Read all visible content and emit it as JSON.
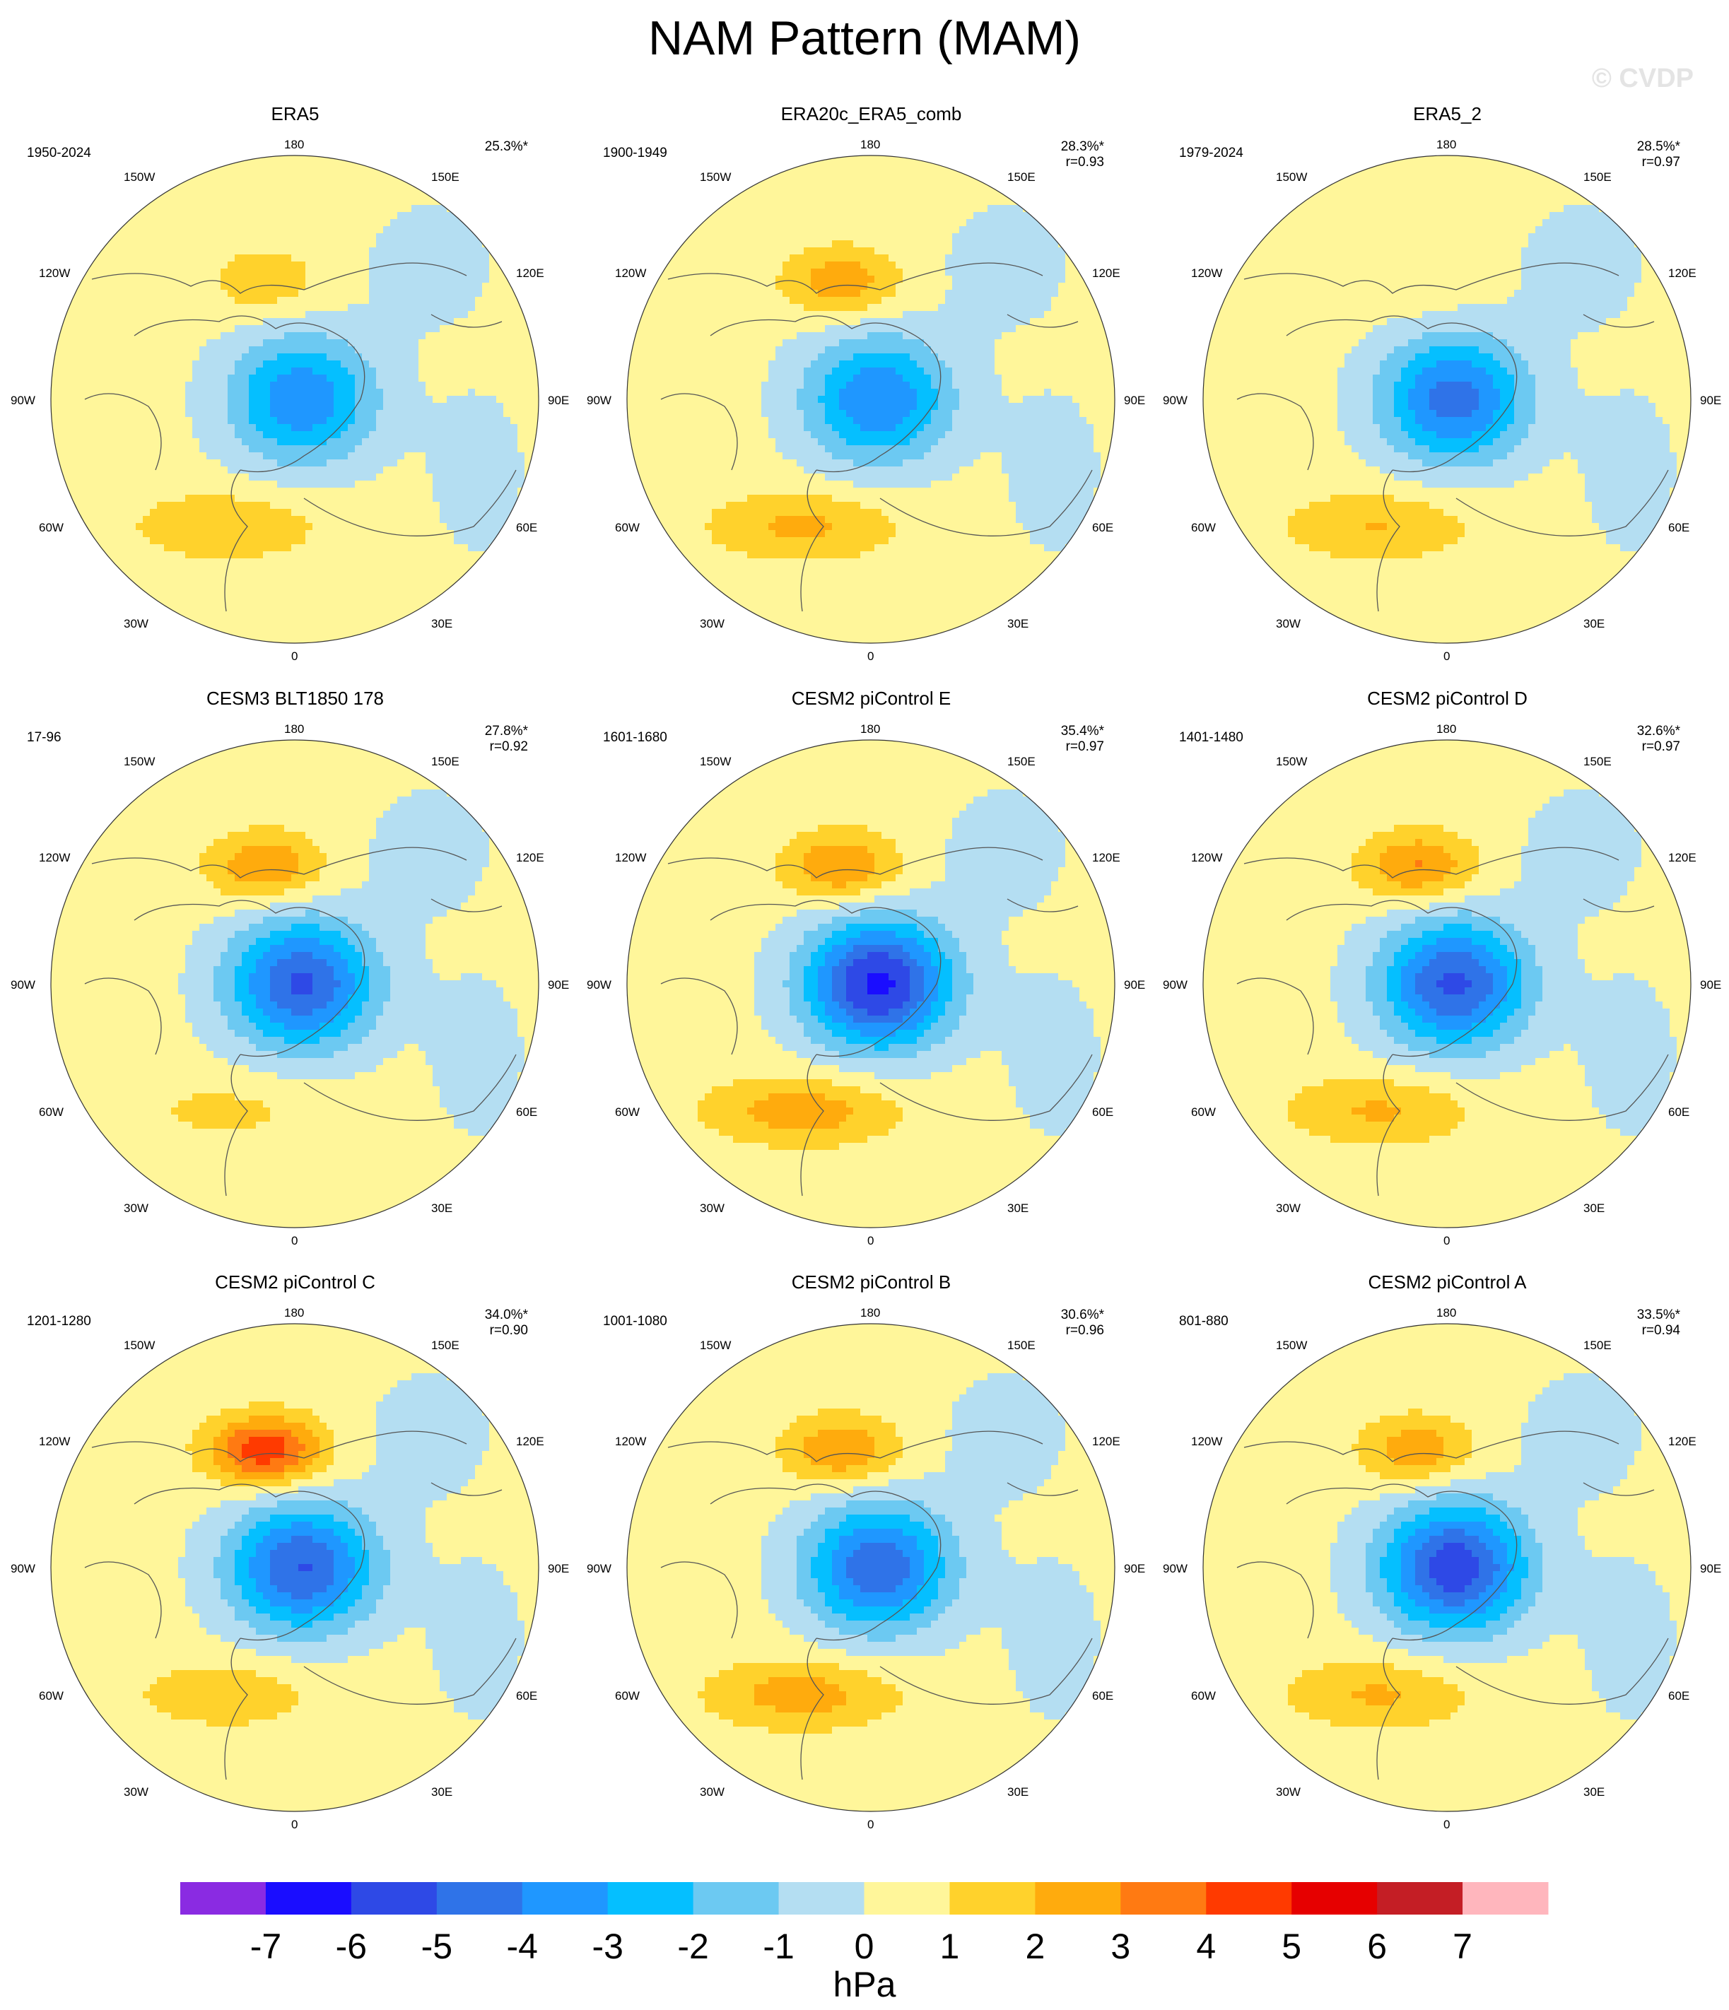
{
  "title": "NAM Pattern (MAM)",
  "watermark": "© CVDP",
  "lon_labels": {
    "top": "180",
    "bottom": "0",
    "tl": "150W",
    "tr": "150E",
    "ul": "120W",
    "ur": "120E",
    "ml": "90W",
    "mr": "90E",
    "ll": "60W",
    "lr": "60E",
    "bl": "30W",
    "br": "30E"
  },
  "panels": [
    {
      "name": "ERA5",
      "period": "1950-2024",
      "pct": "25.3%*",
      "r": "",
      "center": -4.2,
      "pacific": 1.4,
      "atlantic": 1.6
    },
    {
      "name": "ERA20c_ERA5_comb",
      "period": "1900-1949",
      "pct": "28.3%*",
      "r": "r=0.93",
      "center": -4.3,
      "pacific": 2.4,
      "atlantic": 1.9
    },
    {
      "name": "ERA5_2",
      "period": "1979-2024",
      "pct": "28.5%*",
      "r": "r=0.97",
      "center": -4.8,
      "pacific": 0.7,
      "atlantic": 1.7
    },
    {
      "name": "CESM3 BLT1850 178",
      "period": "17-96",
      "pct": "27.8%*",
      "r": "r=0.92",
      "center": -5.5,
      "pacific": 2.6,
      "atlantic": 0.9
    },
    {
      "name": "CESM2 piControl E",
      "period": "1601-1680",
      "pct": "35.4%*",
      "r": "r=0.97",
      "center": -6.6,
      "pacific": 2.8,
      "atlantic": 2.3
    },
    {
      "name": "CESM2 piControl D",
      "period": "1401-1480",
      "pct": "32.6%*",
      "r": "r=0.97",
      "center": -5.6,
      "pacific": 2.8,
      "atlantic": 1.8
    },
    {
      "name": "CESM2 piControl C",
      "period": "1201-1280",
      "pct": "34.0%*",
      "r": "r=0.90",
      "center": -5.4,
      "pacific": 4.4,
      "atlantic": 1.4
    },
    {
      "name": "CESM2 piControl B",
      "period": "1001-1080",
      "pct": "30.6%*",
      "r": "r=0.96",
      "center": -5.2,
      "pacific": 2.7,
      "atlantic": 2.2
    },
    {
      "name": "CESM2 piControl A",
      "period": "801-880",
      "pct": "33.5%*",
      "r": "r=0.94",
      "center": -6.1,
      "pacific": 2.4,
      "atlantic": 1.8
    }
  ],
  "chart_data": {
    "type": "heatmap",
    "title": "NAM Pattern (MAM)",
    "projection": "north polar stereographic",
    "colorbar": {
      "unit": "hPa",
      "ticks": [
        "-7",
        "-6",
        "-5",
        "-4",
        "-3",
        "-2",
        "-1",
        "0",
        "1",
        "2",
        "3",
        "4",
        "5",
        "6",
        "7"
      ],
      "levels": [
        -7,
        -6,
        -5,
        -4,
        -3,
        -2,
        -1,
        0,
        1,
        2,
        3,
        4,
        5,
        6,
        7
      ],
      "colors": [
        "#8a2be2",
        "#1a0dff",
        "#2e49e6",
        "#2f73e8",
        "#1f97ff",
        "#05bfff",
        "#6cc9f2",
        "#b4def2",
        "#fff69a",
        "#ffd22c",
        "#ffab0d",
        "#ff7a12",
        "#ff3a00",
        "#e60000",
        "#c41e25",
        "#ffb6bd"
      ]
    }
  }
}
